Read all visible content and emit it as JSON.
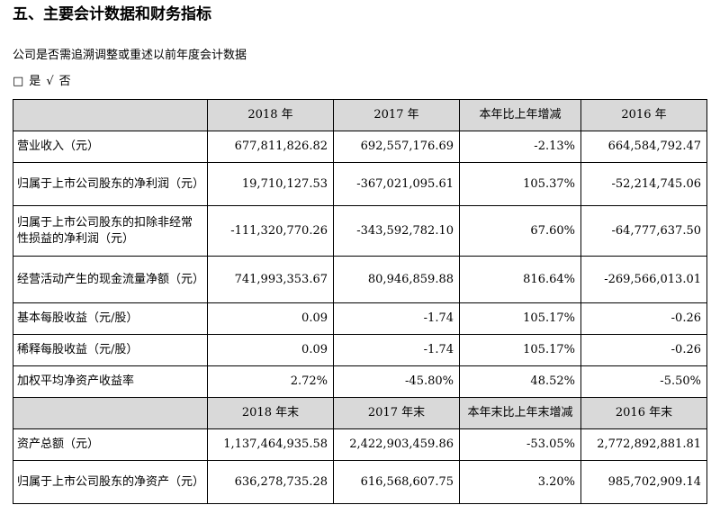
{
  "section_title": "五、主要会计数据和财务指标",
  "question": "公司是否需追溯调整或重述以前年度会计数据",
  "options": {
    "box": "□",
    "yes": "是",
    "check": "√",
    "no": "否"
  },
  "header1": [
    "",
    "2018 年",
    "2017 年",
    "本年比上年增减",
    "2016 年"
  ],
  "rows1": [
    [
      "营业收入（元）",
      "677,811,826.82",
      "692,557,176.69",
      "-2.13%",
      "664,584,792.47"
    ],
    [
      "归属于上市公司股东的净利润（元）",
      "19,710,127.53",
      "-367,021,095.61",
      "105.37%",
      "-52,214,745.06"
    ],
    [
      "归属于上市公司股东的扣除非经常性损益的净利润（元）",
      "-111,320,770.26",
      "-343,592,782.10",
      "67.60%",
      "-64,777,637.50"
    ],
    [
      "经营活动产生的现金流量净额（元）",
      "741,993,353.67",
      "80,946,859.88",
      "816.64%",
      "-269,566,013.01"
    ],
    [
      "基本每股收益（元/股）",
      "0.09",
      "-1.74",
      "105.17%",
      "-0.26"
    ],
    [
      "稀释每股收益（元/股）",
      "0.09",
      "-1.74",
      "105.17%",
      "-0.26"
    ],
    [
      "加权平均净资产收益率",
      "2.72%",
      "-45.80%",
      "48.52%",
      "-5.50%"
    ]
  ],
  "header2": [
    "",
    "2018 年末",
    "2017 年末",
    "本年末比上年末增减",
    "2016 年末"
  ],
  "rows2": [
    [
      "资产总额（元）",
      "1,137,464,935.58",
      "2,422,903,459.86",
      "-53.05%",
      "2,772,892,881.81"
    ],
    [
      "归属于上市公司股东的净资产（元）",
      "636,278,735.28",
      "616,568,607.75",
      "3.20%",
      "985,702,909.14"
    ]
  ]
}
